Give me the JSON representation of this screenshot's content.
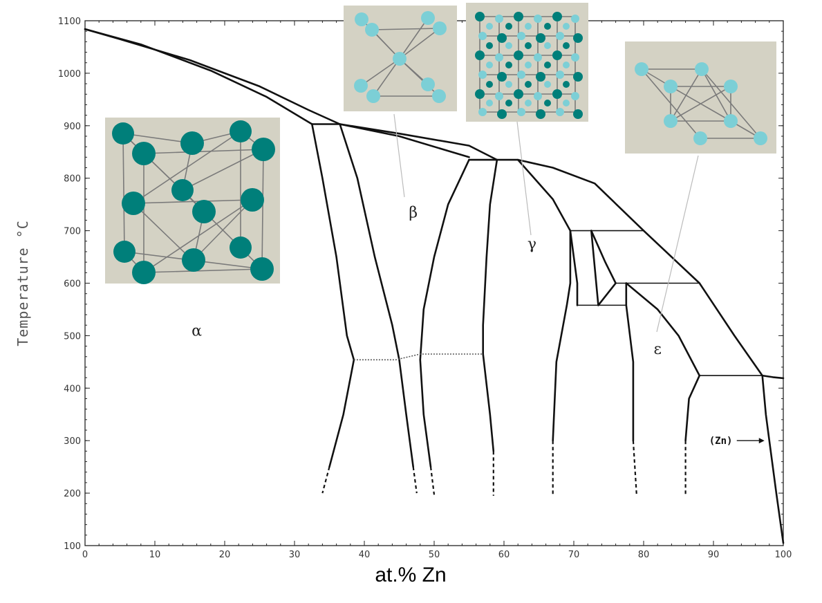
{
  "chart_data": {
    "type": "line",
    "title": "",
    "xlabel": "at.% Zn",
    "ylabel": "Temperature °C",
    "xlim": [
      0,
      100
    ],
    "ylim": [
      100,
      1100
    ],
    "x_ticks": [
      "0",
      "10",
      "20",
      "30",
      "40",
      "50",
      "60",
      "70",
      "80",
      "90",
      "100"
    ],
    "y_ticks": [
      "100",
      "200",
      "300",
      "400",
      "500",
      "600",
      "700",
      "800",
      "900",
      "1000",
      "1100"
    ],
    "grid": false,
    "legend": "none",
    "phase_labels": [
      {
        "text": "α",
        "x": 16,
        "y": 500
      },
      {
        "text": "β",
        "x": 47,
        "y": 725
      },
      {
        "text": "γ",
        "x": 64,
        "y": 665
      },
      {
        "text": "ε",
        "x": 82,
        "y": 465
      }
    ],
    "annotations": [
      {
        "text": "(Zn)",
        "x": 97.5,
        "y": 300
      }
    ],
    "lines": [
      {
        "id": "liquidus-left",
        "points": [
          [
            0,
            1084
          ],
          [
            5,
            1065
          ],
          [
            15,
            1025
          ],
          [
            25,
            975
          ],
          [
            32,
            930
          ],
          [
            36.5,
            903
          ],
          [
            45,
            885
          ],
          [
            55,
            862
          ],
          [
            59,
            835
          ]
        ]
      },
      {
        "id": "solidus-alpha",
        "points": [
          [
            0,
            1084
          ],
          [
            8,
            1055
          ],
          [
            18,
            1005
          ],
          [
            26,
            955
          ],
          [
            32.5,
            903
          ]
        ]
      },
      {
        "id": "solidus-beta",
        "points": [
          [
            36.5,
            903
          ],
          [
            45,
            880
          ],
          [
            55,
            840
          ]
        ]
      },
      {
        "id": "eutectic-903",
        "points": [
          [
            32.5,
            903
          ],
          [
            36.5,
            903
          ]
        ]
      },
      {
        "id": "peritectic-835",
        "points": [
          [
            55,
            835
          ],
          [
            59,
            835
          ]
        ]
      },
      {
        "id": "liquidus-right",
        "points": [
          [
            59,
            835
          ],
          [
            62,
            835
          ],
          [
            67,
            820
          ],
          [
            73,
            790
          ],
          [
            80,
            700
          ],
          [
            88,
            600
          ],
          [
            93,
            500
          ],
          [
            97,
            424
          ],
          [
            98.5,
            421
          ],
          [
            100,
            419
          ]
        ]
      },
      {
        "id": "alpha-beta-left",
        "points": [
          [
            32.5,
            903
          ],
          [
            34,
            800
          ],
          [
            36,
            650
          ],
          [
            37.5,
            500
          ],
          [
            38.5,
            454
          ],
          [
            37,
            350
          ],
          [
            35,
            250
          ]
        ],
        "dashed": [
          [
            35,
            250
          ],
          [
            34,
            200
          ]
        ]
      },
      {
        "id": "alpha-beta-right",
        "points": [
          [
            36.5,
            903
          ],
          [
            39,
            800
          ],
          [
            41.5,
            650
          ],
          [
            44,
            520
          ],
          [
            45,
            454
          ],
          [
            46,
            350
          ],
          [
            47,
            250
          ]
        ],
        "dashed": [
          [
            47,
            250
          ],
          [
            47.5,
            200
          ]
        ]
      },
      {
        "id": "beta-gamma-left",
        "points": [
          [
            55,
            835
          ],
          [
            52,
            750
          ],
          [
            50,
            650
          ],
          [
            48.5,
            550
          ],
          [
            48,
            454
          ],
          [
            48.5,
            350
          ],
          [
            49.5,
            250
          ]
        ],
        "dashed": [
          [
            49.5,
            250
          ],
          [
            50,
            197
          ]
        ]
      },
      {
        "id": "beta-gamma-right",
        "points": [
          [
            59,
            835
          ],
          [
            58,
            750
          ],
          [
            57.5,
            650
          ],
          [
            57,
            520
          ],
          [
            57,
            465
          ],
          [
            58,
            350
          ],
          [
            58.5,
            280
          ]
        ],
        "dashed": [
          [
            58.5,
            280
          ],
          [
            58.5,
            195
          ]
        ]
      },
      {
        "id": "gamma-right",
        "points": [
          [
            62,
            835
          ],
          [
            67,
            760
          ],
          [
            69.5,
            700
          ],
          [
            69.5,
            600
          ],
          [
            69,
            558
          ],
          [
            67.5,
            450
          ],
          [
            67,
            300
          ]
        ],
        "dashed": [
          [
            67,
            300
          ],
          [
            67,
            195
          ]
        ]
      },
      {
        "id": "delta-left",
        "points": [
          [
            69.5,
            700
          ],
          [
            70.5,
            600
          ],
          [
            70.5,
            558
          ]
        ]
      },
      {
        "id": "delta-left-2",
        "points": [
          [
            72.5,
            700
          ],
          [
            73.5,
            558
          ]
        ]
      },
      {
        "id": "delta-wedge",
        "points": [
          [
            72.5,
            700
          ],
          [
            74.5,
            640
          ],
          [
            76,
            600
          ],
          [
            73.5,
            558
          ]
        ]
      },
      {
        "id": "delta-right",
        "points": [
          [
            77.5,
            600
          ],
          [
            77.5,
            558
          ],
          [
            78.5,
            450
          ],
          [
            78.5,
            300
          ]
        ],
        "dashed": [
          [
            78.5,
            300
          ],
          [
            79,
            195
          ]
        ]
      },
      {
        "id": "epsilon-left",
        "points": [
          [
            77.5,
            600
          ],
          [
            82,
            550
          ],
          [
            85,
            500
          ],
          [
            88,
            424
          ]
        ]
      },
      {
        "id": "epsilon-right",
        "points": [
          [
            88,
            424
          ],
          [
            86.5,
            380
          ],
          [
            86,
            300
          ]
        ],
        "dashed": [
          [
            86,
            300
          ],
          [
            86,
            195
          ]
        ]
      },
      {
        "id": "zn-solvus",
        "points": [
          [
            97,
            424
          ],
          [
            97.5,
            350
          ],
          [
            98,
            300
          ],
          [
            99,
            200
          ],
          [
            100,
            105
          ]
        ]
      }
    ],
    "isotherms": [
      {
        "y": 700,
        "x": [
          69.5,
          80
        ]
      },
      {
        "y": 600,
        "x": [
          76,
          88
        ]
      },
      {
        "y": 558,
        "x": [
          70.5,
          77.5
        ]
      },
      {
        "y": 424,
        "x": [
          88,
          97
        ]
      }
    ],
    "dotted_lines": [
      {
        "points": [
          [
            38.5,
            454
          ],
          [
            44.5,
            454
          ],
          [
            48,
            465
          ],
          [
            57,
            465
          ]
        ]
      }
    ],
    "crystal_insets": [
      "fcc-alpha-structure-icon",
      "bcc-beta-structure-icon",
      "gamma-brass-structure-icon",
      "hcp-epsilon-structure-icon"
    ],
    "colors": {
      "curve": "#111111",
      "atom_dark": "#007f7a",
      "atom_light": "#7ccfd6",
      "inset_bg": "#d4d2c4"
    }
  }
}
